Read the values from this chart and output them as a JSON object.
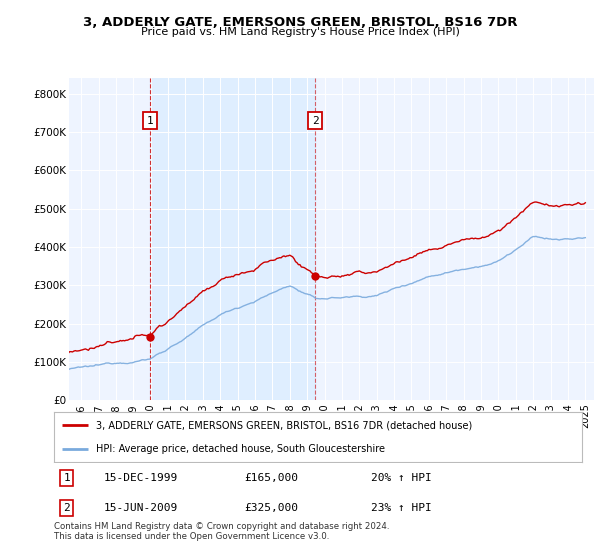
{
  "title": "3, ADDERLY GATE, EMERSONS GREEN, BRISTOL, BS16 7DR",
  "subtitle": "Price paid vs. HM Land Registry's House Price Index (HPI)",
  "ylabel_ticks": [
    "£0",
    "£100K",
    "£200K",
    "£300K",
    "£400K",
    "£500K",
    "£600K",
    "£700K",
    "£800K"
  ],
  "ytick_values": [
    0,
    100000,
    200000,
    300000,
    400000,
    500000,
    600000,
    700000,
    800000
  ],
  "ylim": [
    0,
    840000
  ],
  "xlim_start": 1995.3,
  "xlim_end": 2025.5,
  "red_color": "#cc0000",
  "blue_color": "#7aaadd",
  "shade_color": "#ddeeff",
  "plot_bg": "#eef4ff",
  "sale1_year": 1999.958,
  "sale1_price": 165000,
  "sale2_year": 2009.458,
  "sale2_price": 325000,
  "legend_line1": "3, ADDERLY GATE, EMERSONS GREEN, BRISTOL, BS16 7DR (detached house)",
  "legend_line2": "HPI: Average price, detached house, South Gloucestershire",
  "annotation1_date": "15-DEC-1999",
  "annotation1_price": "£165,000",
  "annotation1_hpi": "20% ↑ HPI",
  "annotation2_date": "15-JUN-2009",
  "annotation2_price": "£325,000",
  "annotation2_hpi": "23% ↑ HPI",
  "footer": "Contains HM Land Registry data © Crown copyright and database right 2024.\nThis data is licensed under the Open Government Licence v3.0.",
  "xtick_years": [
    1996,
    1997,
    1998,
    1999,
    2000,
    2001,
    2002,
    2003,
    2004,
    2005,
    2006,
    2007,
    2008,
    2009,
    2010,
    2011,
    2012,
    2013,
    2014,
    2015,
    2016,
    2017,
    2018,
    2019,
    2020,
    2021,
    2022,
    2023,
    2024,
    2025
  ]
}
